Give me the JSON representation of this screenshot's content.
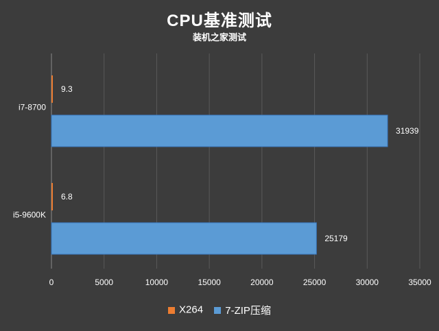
{
  "title": "CPU基准测试",
  "subtitle": "装机之家测试",
  "colors": {
    "background": "#3c3c3c",
    "gridline": "#5a5a5a",
    "text": "#ffffff",
    "x264": "#ed7d31",
    "7zip": "#5b9bd5"
  },
  "chart_data": {
    "type": "bar",
    "orientation": "horizontal",
    "categories": [
      "i7-8700",
      "i5-9600K"
    ],
    "series": [
      {
        "name": "X264",
        "values": [
          9.3,
          6.8
        ]
      },
      {
        "name": "7-ZIP压缩",
        "values": [
          31939,
          25179
        ]
      }
    ],
    "xlim": [
      0,
      35000
    ],
    "x_ticks": [
      "0",
      "5000",
      "10000",
      "15000",
      "20000",
      "25000",
      "30000",
      "35000"
    ],
    "xlabel": "",
    "ylabel": "",
    "grid": true,
    "legend_position": "bottom"
  }
}
